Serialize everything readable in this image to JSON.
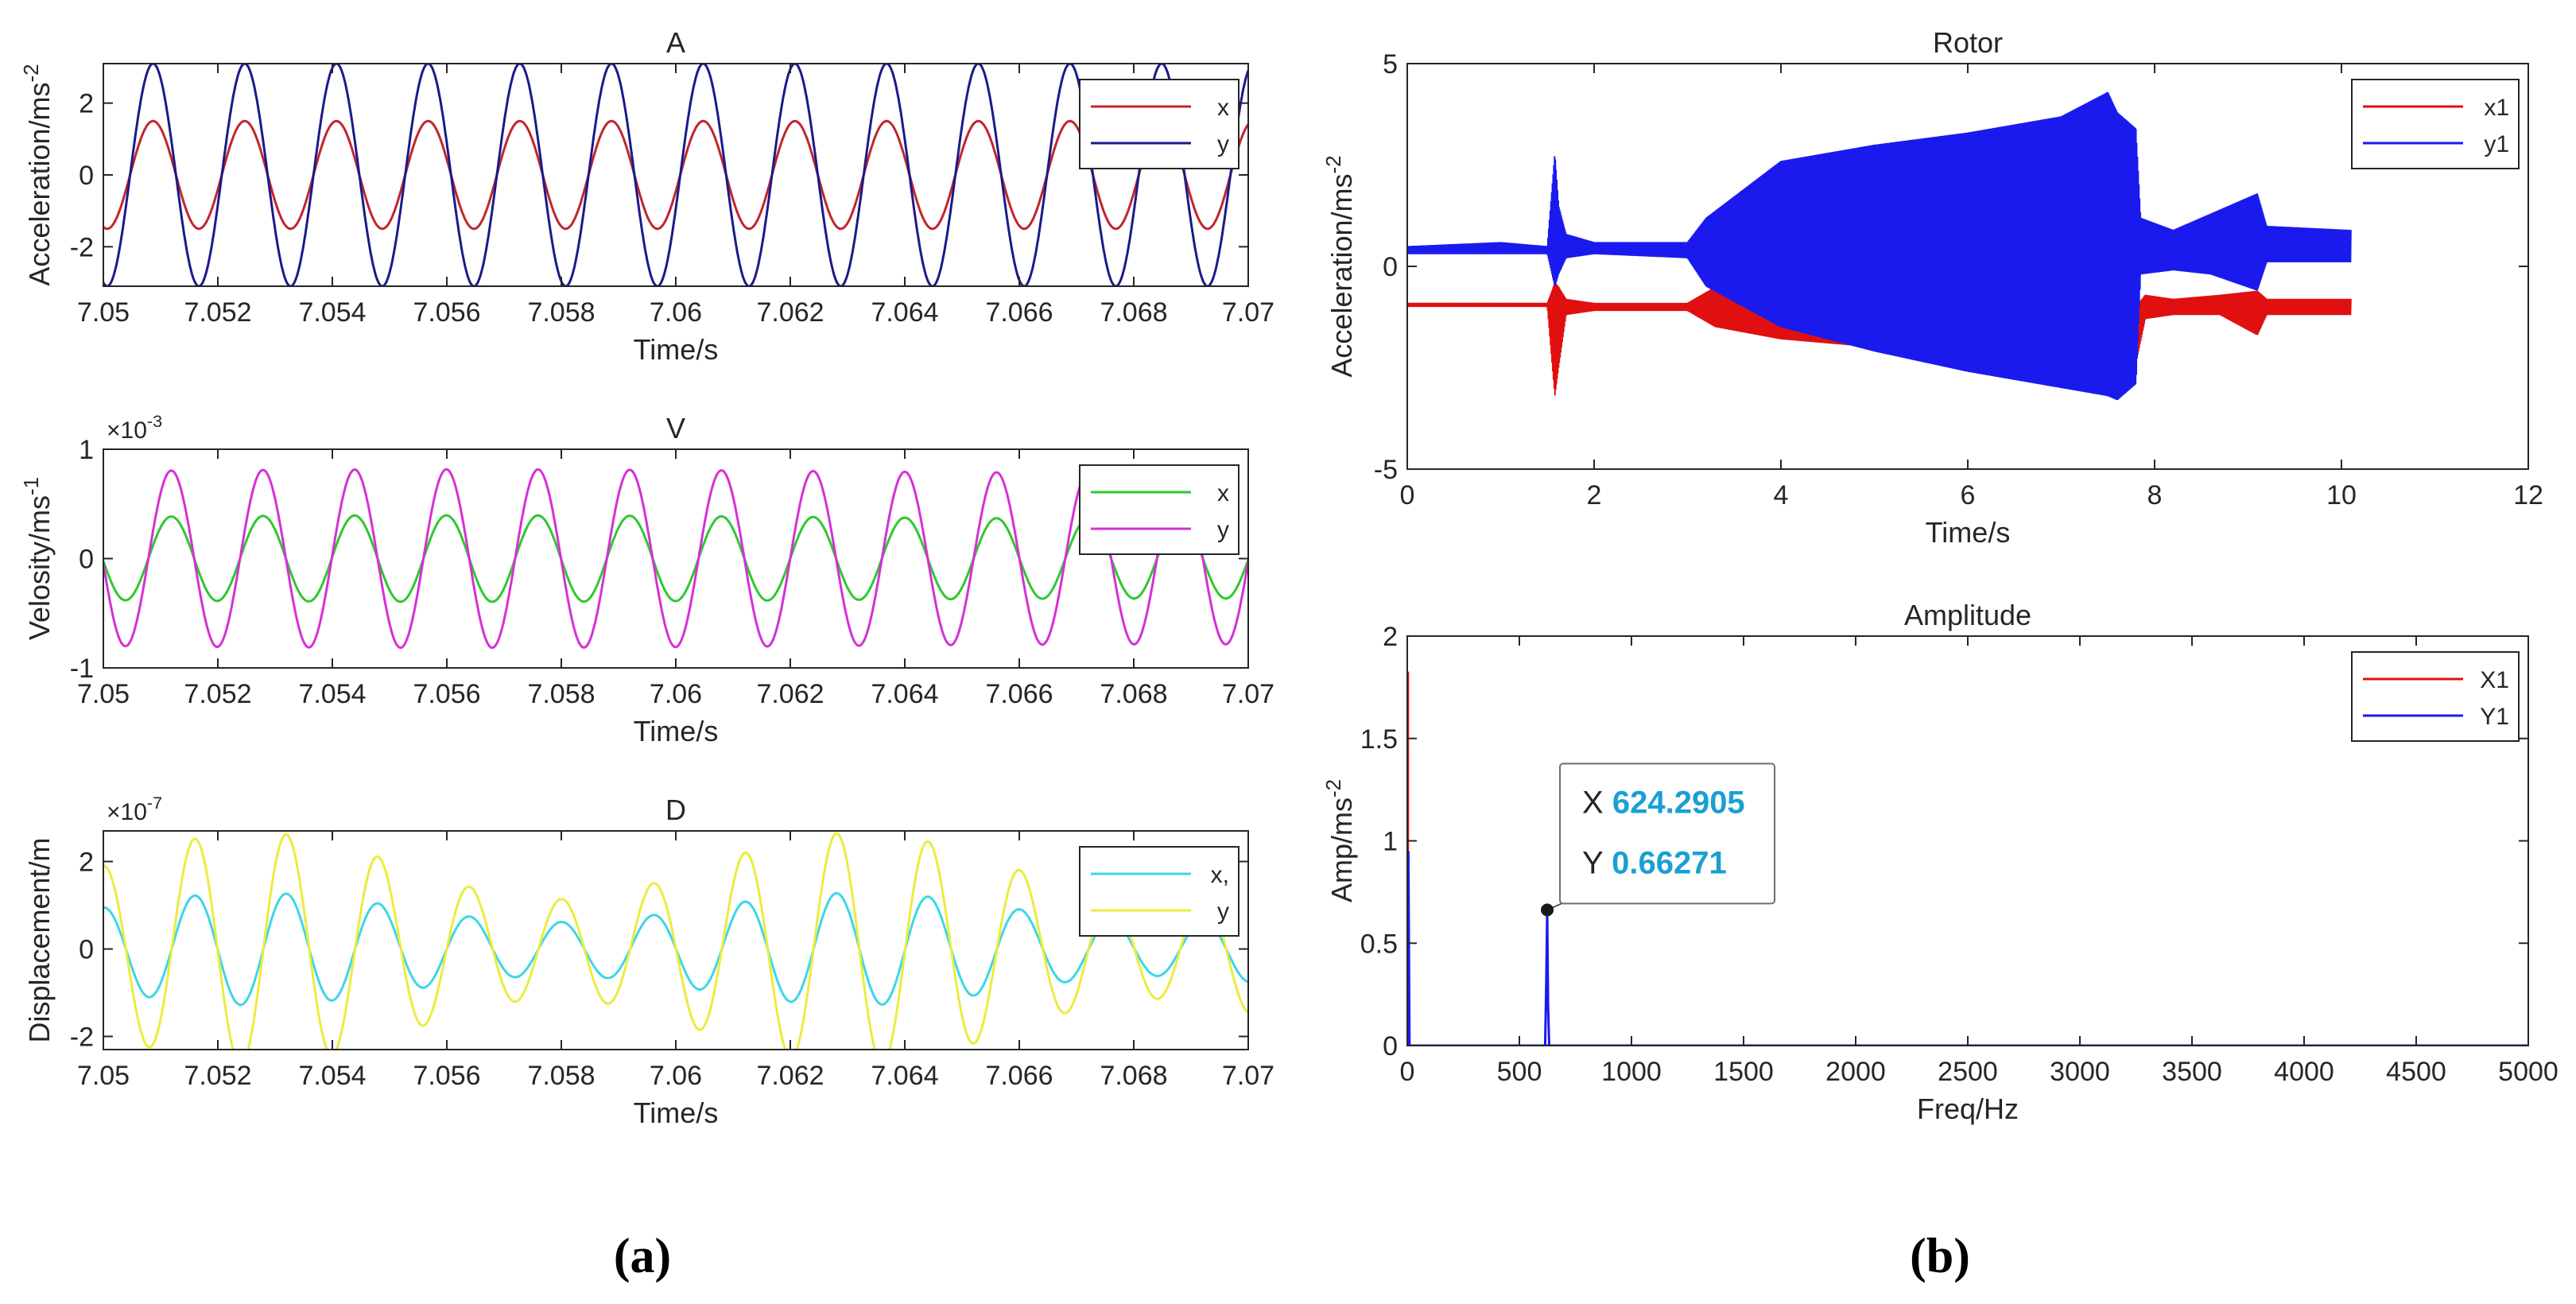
{
  "captions": {
    "a": "(a)",
    "b": "(b)"
  },
  "datatip": {
    "x_label": "X",
    "x_value": "624.2905",
    "y_label": "Y",
    "y_value": "0.66271",
    "text_color": "#1a9fd3"
  },
  "chart_data": [
    {
      "id": "A",
      "type": "line",
      "title": "A",
      "xlabel": "Time/s",
      "ylabel": "Acceleration/ms^-2",
      "xlim": [
        7.05,
        7.07
      ],
      "ylim": [
        -3.1,
        3.1
      ],
      "xticks": [
        7.05,
        7.052,
        7.054,
        7.056,
        7.058,
        7.06,
        7.062,
        7.064,
        7.066,
        7.068,
        7.07
      ],
      "xtick_labels": [
        "7.05",
        "7.052",
        "7.054",
        "7.056",
        "7.058",
        "7.06",
        "7.062",
        "7.064",
        "7.066",
        "7.068",
        "7.07"
      ],
      "yticks": [
        -2,
        0,
        2
      ],
      "ytick_labels": [
        "-2",
        "0",
        "2"
      ],
      "exponent": "",
      "legend_position": "top-right",
      "series": [
        {
          "name": "x",
          "color": "#c0262d",
          "amplitude": 1.5,
          "offset": 0,
          "frequency_hz": 624.29,
          "phase": 4.45,
          "beat": 0,
          "beat_hz": 0
        },
        {
          "name": "y",
          "color": "#1a1a8c",
          "amplitude": 3.1,
          "offset": 0,
          "frequency_hz": 624.29,
          "phase": 4.45,
          "beat": 0,
          "beat_hz": 0
        }
      ]
    },
    {
      "id": "V",
      "type": "line",
      "title": "V",
      "xlabel": "Time/s",
      "ylabel": "Velosity/ms^-1",
      "xlim": [
        7.05,
        7.07
      ],
      "ylim": [
        -1,
        1
      ],
      "xticks": [
        7.05,
        7.052,
        7.054,
        7.056,
        7.058,
        7.06,
        7.062,
        7.064,
        7.066,
        7.068,
        7.07
      ],
      "xtick_labels": [
        "7.05",
        "7.052",
        "7.054",
        "7.056",
        "7.058",
        "7.06",
        "7.062",
        "7.064",
        "7.066",
        "7.068",
        "7.07"
      ],
      "yticks": [
        -1,
        0,
        1
      ],
      "ytick_labels": [
        "-1",
        "0",
        "1"
      ],
      "exponent": "×10^-3",
      "legend_position": "top-right",
      "series": [
        {
          "name": "x",
          "color": "#2ec82e",
          "amplitude": 0.38,
          "offset": 0,
          "frequency_hz": 624.29,
          "phase": 3.2,
          "beat": 0.04,
          "beat_hz": 40
        },
        {
          "name": "y",
          "color": "#d630d6",
          "amplitude": 0.8,
          "offset": 0,
          "frequency_hz": 624.29,
          "phase": 3.2,
          "beat": 0.02,
          "beat_hz": 40
        }
      ]
    },
    {
      "id": "D",
      "type": "line",
      "title": "D",
      "xlabel": "Time/s",
      "ylabel": "Displacement/m",
      "xlim": [
        7.05,
        7.07
      ],
      "ylim": [
        -2.3,
        2.7
      ],
      "xticks": [
        7.05,
        7.052,
        7.054,
        7.056,
        7.058,
        7.06,
        7.062,
        7.064,
        7.066,
        7.068,
        7.07
      ],
      "xtick_labels": [
        "7.05",
        "7.052",
        "7.054",
        "7.056",
        "7.058",
        "7.06",
        "7.062",
        "7.064",
        "7.066",
        "7.068",
        "7.07"
      ],
      "yticks": [
        -2,
        0,
        2
      ],
      "ytick_labels": [
        "-2",
        "0",
        "2"
      ],
      "exponent": "×10^-7",
      "legend_position": "top-right",
      "series": [
        {
          "name": "x,",
          "color": "#3cd6e8",
          "amplitude": 0.95,
          "offset": 0,
          "frequency_hz": 624.29,
          "phase": 1.6,
          "beat": 0.35,
          "beat_hz": 95
        },
        {
          "name": "y",
          "color": "#ecec3c",
          "amplitude": 1.9,
          "offset": 0,
          "frequency_hz": 624.29,
          "phase": 1.6,
          "beat": 0.4,
          "beat_hz": 95
        }
      ]
    },
    {
      "id": "Rotor",
      "type": "line",
      "title": "Rotor",
      "xlabel": "Time/s",
      "ylabel": "Acceleration/ms^-2",
      "xlim": [
        0,
        12
      ],
      "ylim": [
        -5,
        5
      ],
      "xticks": [
        0,
        2,
        4,
        6,
        8,
        10,
        12
      ],
      "xtick_labels": [
        "0",
        "2",
        "4",
        "6",
        "8",
        "10",
        "12"
      ],
      "yticks": [
        -5,
        0,
        5
      ],
      "ytick_labels": [
        "-5",
        "0",
        "5"
      ],
      "legend_position": "top-right",
      "series": [
        {
          "name": "x1",
          "color": "#e01010",
          "offset": -1.0,
          "envelope_t": [
            0,
            1.5,
            1.58,
            1.62,
            1.7,
            2.0,
            3.0,
            3.3,
            4.0,
            5.0,
            6.0,
            7.0,
            7.5,
            7.8,
            7.9,
            8.2,
            8.7,
            9.1,
            9.2,
            10.1
          ],
          "envelope_upper": [
            -0.9,
            -0.9,
            -0.4,
            -0.5,
            -0.8,
            -0.9,
            -0.9,
            -0.5,
            -0.7,
            -0.9,
            -1.0,
            -1.0,
            -1.0,
            -1.0,
            -0.7,
            -0.8,
            -0.7,
            -0.6,
            -0.8,
            -0.8
          ],
          "envelope_lower": [
            -1.0,
            -1.0,
            -3.2,
            -2.5,
            -1.2,
            -1.1,
            -1.1,
            -1.5,
            -1.8,
            -2.0,
            -2.2,
            -2.3,
            -2.4,
            -2.4,
            -1.3,
            -1.2,
            -1.2,
            -1.7,
            -1.2,
            -1.2
          ]
        },
        {
          "name": "y1",
          "color": "#1a1aee",
          "offset": 0.4,
          "envelope_t": [
            0,
            1.0,
            1.5,
            1.58,
            1.62,
            1.7,
            2.0,
            3.0,
            3.2,
            4.0,
            5.0,
            6.0,
            7.0,
            7.5,
            7.6,
            7.8,
            7.85,
            8.2,
            8.6,
            9.1,
            9.2,
            10.1
          ],
          "envelope_upper": [
            0.5,
            0.6,
            0.5,
            2.8,
            1.5,
            0.8,
            0.6,
            0.6,
            1.2,
            2.6,
            3.0,
            3.3,
            3.7,
            4.3,
            3.8,
            3.4,
            1.2,
            0.9,
            1.3,
            1.8,
            1.0,
            0.9
          ],
          "envelope_lower": [
            0.3,
            0.3,
            0.3,
            -0.5,
            -0.2,
            0.2,
            0.3,
            0.2,
            -0.5,
            -1.5,
            -2.1,
            -2.6,
            -3.0,
            -3.2,
            -3.3,
            -2.9,
            -0.2,
            -0.1,
            -0.2,
            -0.6,
            0.1,
            0.1
          ]
        }
      ]
    },
    {
      "id": "Amplitude",
      "type": "line",
      "title": "Amplitude",
      "xlabel": "Freq/Hz",
      "ylabel": "Amp/ms^-2",
      "xlim": [
        0,
        5000
      ],
      "ylim": [
        0,
        2
      ],
      "xticks": [
        0,
        500,
        1000,
        1500,
        2000,
        2500,
        3000,
        3500,
        4000,
        4500,
        5000
      ],
      "xtick_labels": [
        "0",
        "500",
        "1000",
        "1500",
        "2000",
        "2500",
        "3000",
        "3500",
        "4000",
        "4500",
        "5000"
      ],
      "yticks": [
        0,
        0.5,
        1,
        1.5,
        2
      ],
      "ytick_labels": [
        "0",
        "0.5",
        "1",
        "1.5",
        "2"
      ],
      "legend_position": "top-right",
      "series": [
        {
          "name": "X1",
          "color": "#e01010",
          "x": [
            0,
            0,
            3,
            3,
            5000
          ],
          "y": [
            0,
            1.82,
            1.82,
            0,
            0
          ]
        },
        {
          "name": "Y1",
          "color": "#1a1aee",
          "x": [
            0,
            5,
            5,
            10,
            615,
            620,
            624.29,
            628,
            633,
            5000
          ],
          "y": [
            0,
            0.95,
            0.95,
            0,
            0,
            0.3,
            0.66271,
            0.2,
            0,
            0
          ]
        }
      ],
      "marker": {
        "x": 624.29,
        "y": 0.66271
      }
    }
  ]
}
